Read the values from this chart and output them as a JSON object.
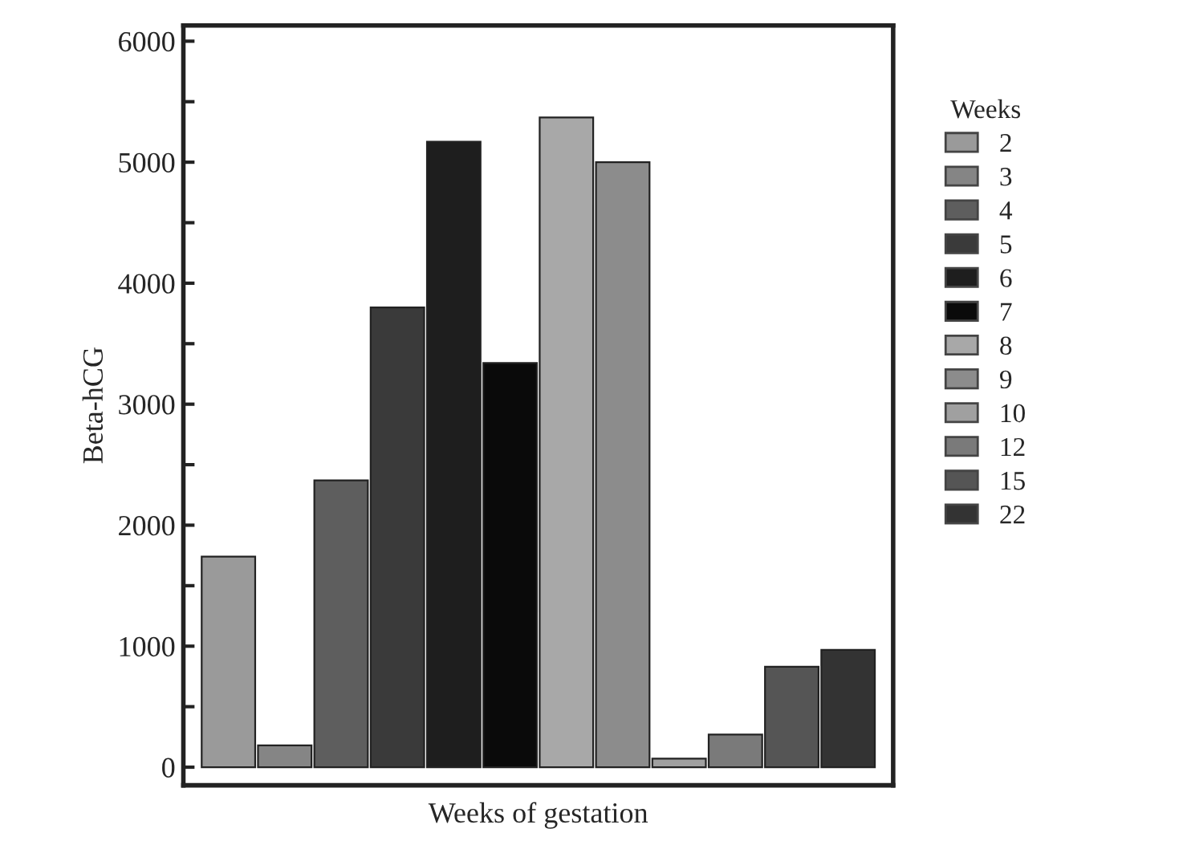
{
  "chart_data": {
    "type": "bar",
    "xlabel": "Weeks of gestation",
    "ylabel": "Beta-hCG",
    "legend_title": "Weeks",
    "legend": "right",
    "categories": [
      null,
      null,
      null,
      null,
      null,
      null,
      null,
      null,
      null,
      null,
      null,
      null
    ],
    "ylim": [
      -150,
      6130
    ],
    "yticks": [
      0,
      {
        "value": 500,
        "label": null
      },
      1000,
      {
        "value": 1500,
        "label": null
      },
      2000,
      {
        "value": 2500,
        "label": null
      },
      3000,
      {
        "value": 3500,
        "label": null
      },
      4000,
      {
        "value": 4500,
        "label": null
      },
      5000,
      {
        "value": 5500,
        "label": null
      },
      6000
    ],
    "series": [
      {
        "name": "2",
        "color": "#9a9a9a",
        "values": [
          1740,
          null,
          null,
          null,
          null,
          null,
          null,
          null,
          null,
          null,
          null,
          null
        ]
      },
      {
        "name": "3",
        "color": "#858585",
        "values": [
          null,
          180,
          null,
          null,
          null,
          null,
          null,
          null,
          null,
          null,
          null,
          null
        ]
      },
      {
        "name": "4",
        "color": "#5e5e5e",
        "values": [
          null,
          null,
          2370,
          null,
          null,
          null,
          null,
          null,
          null,
          null,
          null,
          null
        ]
      },
      {
        "name": "5",
        "color": "#3a3a3a",
        "values": [
          null,
          null,
          null,
          3800,
          null,
          null,
          null,
          null,
          null,
          null,
          null,
          null
        ]
      },
      {
        "name": "6",
        "color": "#1e1e1e",
        "values": [
          null,
          null,
          null,
          null,
          5170,
          null,
          null,
          null,
          null,
          null,
          null,
          null
        ]
      },
      {
        "name": "7",
        "color": "#0a0a0a",
        "values": [
          null,
          null,
          null,
          null,
          null,
          3340,
          null,
          null,
          null,
          null,
          null,
          null
        ]
      },
      {
        "name": "8",
        "color": "#a8a8a8",
        "values": [
          null,
          null,
          null,
          null,
          null,
          null,
          5370,
          null,
          null,
          null,
          null,
          null
        ]
      },
      {
        "name": "9",
        "color": "#8c8c8c",
        "values": [
          null,
          null,
          null,
          null,
          null,
          null,
          null,
          5000,
          null,
          null,
          null,
          null
        ]
      },
      {
        "name": "10",
        "color": "#a0a0a0",
        "values": [
          null,
          null,
          null,
          null,
          null,
          null,
          null,
          null,
          70,
          null,
          null,
          null
        ]
      },
      {
        "name": "12",
        "color": "#7a7a7a",
        "values": [
          null,
          null,
          null,
          null,
          null,
          null,
          null,
          null,
          null,
          270,
          null,
          null
        ]
      },
      {
        "name": "15",
        "color": "#555555",
        "values": [
          null,
          null,
          null,
          null,
          null,
          null,
          null,
          null,
          null,
          null,
          830,
          null
        ]
      },
      {
        "name": "22",
        "color": "#333333",
        "values": [
          null,
          null,
          null,
          null,
          null,
          null,
          null,
          null,
          null,
          null,
          null,
          970
        ]
      }
    ]
  }
}
